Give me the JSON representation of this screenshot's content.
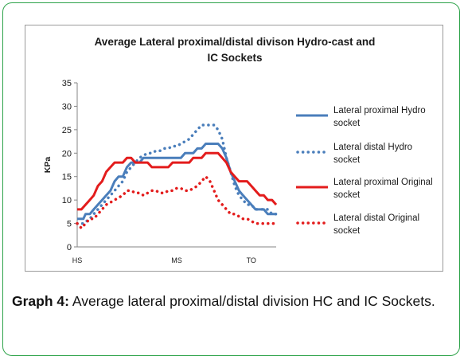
{
  "chart_data": {
    "type": "line",
    "title_line1": "Average Lateral proximal/distal divison Hydro-cast and",
    "title_line2": "IC Sockets",
    "ylabel": "KPa",
    "ylim": [
      0,
      35
    ],
    "yticks": [
      "0",
      "5",
      "10",
      "15",
      "20",
      "25",
      "30",
      "35"
    ],
    "xlim": [
      0,
      100
    ],
    "xticks": [
      {
        "x": 0,
        "label": "HS"
      },
      {
        "x": 50,
        "label": "MS"
      },
      {
        "x": 87.5,
        "label": "TO"
      }
    ],
    "grid": false,
    "legend_position": "right",
    "series": [
      {
        "name": "Lateral proximal Hydro socket",
        "color": "#4a7ebb",
        "style": "solid",
        "x": [
          0,
          3.1,
          4.2,
          6.3,
          8.3,
          10.4,
          12.5,
          14.6,
          16.7,
          18.8,
          20.8,
          22.9,
          25,
          27.1,
          29.2,
          31.3,
          33.3,
          35.4,
          37.5,
          39.6,
          41.7,
          43.8,
          45.8,
          47.9,
          50,
          52.1,
          54.2,
          56.3,
          58.3,
          60.4,
          62.5,
          64.6,
          66.7,
          68.8,
          70.8,
          72.9,
          75,
          77.1,
          79.2,
          81.3,
          83.3,
          85.4,
          87.5,
          89.6,
          91.7,
          93.8,
          95.8,
          97.9,
          100
        ],
        "y": [
          6,
          6,
          7,
          7,
          8,
          9,
          10,
          11,
          12,
          14,
          15,
          15,
          17,
          18,
          18,
          18,
          19,
          19,
          19,
          19,
          19,
          19,
          19,
          19,
          19,
          19,
          20,
          20,
          20,
          21,
          21,
          22,
          22,
          22,
          22,
          21,
          19,
          16,
          14,
          12,
          11,
          10,
          9,
          8,
          8,
          8,
          7,
          7,
          7
        ]
      },
      {
        "name": "Lateral distal Hydro socket",
        "color": "#4a7ebb",
        "style": "dotted",
        "x": [
          0,
          3.1,
          6.3,
          8.3,
          10.4,
          12.5,
          14.6,
          16.7,
          18.8,
          20.8,
          22.9,
          25,
          27.1,
          29.2,
          31.3,
          33.3,
          35.4,
          37.5,
          39.6,
          41.7,
          43.8,
          45.8,
          47.9,
          50,
          52.1,
          54.2,
          56.3,
          58.3,
          60.4,
          62.5,
          64.6,
          66.7,
          68.8,
          70.8,
          72.9,
          75,
          77.1,
          79.2,
          81.3,
          83.3,
          85.4,
          87.5,
          89.6,
          91.7,
          93.8,
          95.8,
          97.9,
          100
        ],
        "y": [
          5,
          5,
          6,
          7,
          8,
          9,
          10,
          11,
          12,
          13,
          14,
          16,
          17,
          18,
          19,
          19.5,
          20,
          20,
          20.5,
          20.5,
          21,
          21,
          21.5,
          21.5,
          22,
          22.5,
          23,
          24,
          25,
          26,
          26,
          26,
          26,
          25,
          23,
          19,
          16,
          13,
          11,
          10,
          9,
          9,
          8,
          8,
          8,
          8,
          7,
          7
        ]
      },
      {
        "name": "Lateral proximal Original socket",
        "color": "#e31c1c",
        "style": "solid",
        "x": [
          0,
          2.1,
          4.2,
          6.3,
          8.3,
          10.4,
          12.5,
          14.6,
          16.7,
          18.8,
          20.8,
          22.9,
          25,
          27.1,
          29.2,
          31.3,
          33.3,
          35.4,
          37.5,
          39.6,
          41.7,
          43.8,
          45.8,
          47.9,
          50,
          52.1,
          54.2,
          56.3,
          58.3,
          60.4,
          62.5,
          64.6,
          66.7,
          68.8,
          70.8,
          72.9,
          75,
          77.1,
          79.2,
          81.3,
          83.3,
          85.4,
          87.5,
          89.6,
          91.7,
          93.8,
          95.8,
          97.9,
          100
        ],
        "y": [
          8,
          8,
          9,
          10,
          11,
          13,
          14,
          16,
          17,
          18,
          18,
          18,
          19,
          19,
          18,
          18,
          18,
          18,
          17,
          17,
          17,
          17,
          17,
          18,
          18,
          18,
          18,
          18,
          19,
          19,
          19,
          20,
          20,
          20,
          20,
          19,
          18,
          16,
          15,
          14,
          14,
          14,
          13,
          12,
          11,
          11,
          10,
          10,
          9
        ]
      },
      {
        "name": "Lateral distal Original socket",
        "color": "#e31c1c",
        "style": "dotted",
        "x": [
          0,
          2.1,
          4.2,
          6.3,
          8.3,
          10.4,
          12.5,
          14.6,
          16.7,
          18.8,
          20.8,
          22.9,
          25,
          27.1,
          29.2,
          31.3,
          33.3,
          35.4,
          37.5,
          39.6,
          41.7,
          43.8,
          45.8,
          47.9,
          50,
          52.1,
          54.2,
          56.3,
          58.3,
          60.4,
          62.5,
          64.6,
          66.7,
          68.8,
          70.8,
          72.9,
          75,
          77.1,
          79.2,
          81.3,
          83.3,
          85.4,
          87.5,
          89.6,
          91.7,
          93.8,
          95.8,
          97.9,
          100
        ],
        "y": [
          5,
          4,
          5,
          6,
          6,
          7,
          8,
          9,
          9.5,
          10,
          10.5,
          11,
          12,
          12,
          11.5,
          11.5,
          11,
          11.5,
          12,
          12,
          11.5,
          11.5,
          12,
          12,
          12.5,
          12.5,
          12,
          12,
          12.5,
          13,
          14,
          15,
          14,
          12,
          10,
          9,
          8,
          7,
          7,
          6.5,
          6,
          6,
          5.5,
          5,
          5,
          5,
          5,
          5,
          5
        ]
      }
    ]
  },
  "caption": {
    "label": "Graph 4:",
    "text": " Average lateral proximal/distal division HC and IC Sockets."
  }
}
